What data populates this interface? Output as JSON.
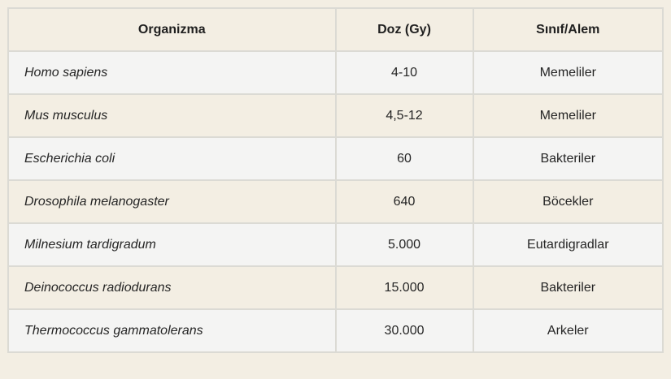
{
  "table": {
    "columns": [
      {
        "label": "Organizma"
      },
      {
        "label": "Doz (Gy)"
      },
      {
        "label": "Sınıf/Alem"
      }
    ],
    "rows": [
      {
        "organism": "Homo sapiens",
        "dose": "4-10",
        "class": "Memeliler"
      },
      {
        "organism": "Mus musculus",
        "dose": "4,5-12",
        "class": "Memeliler"
      },
      {
        "organism": "Escherichia coli",
        "dose": "60",
        "class": "Bakteriler"
      },
      {
        "organism": "Drosophila melanogaster",
        "dose": "640",
        "class": "Böcekler"
      },
      {
        "organism": "Milnesium tardigradum",
        "dose": "5.000",
        "class": "Eutardigradlar"
      },
      {
        "organism": "Deinococcus radiodurans",
        "dose": "15.000",
        "class": "Bakteriler"
      },
      {
        "organism": "Thermococcus gammatolerans",
        "dose": "30.000",
        "class": "Arkeler"
      }
    ]
  },
  "colors": {
    "page_background": "#f3eee3",
    "header_background": "#f3eee3",
    "row_gray_background": "#f4f4f3",
    "row_cream_background": "#f3eee3",
    "border": "#dbdad4",
    "text": "#252525"
  }
}
